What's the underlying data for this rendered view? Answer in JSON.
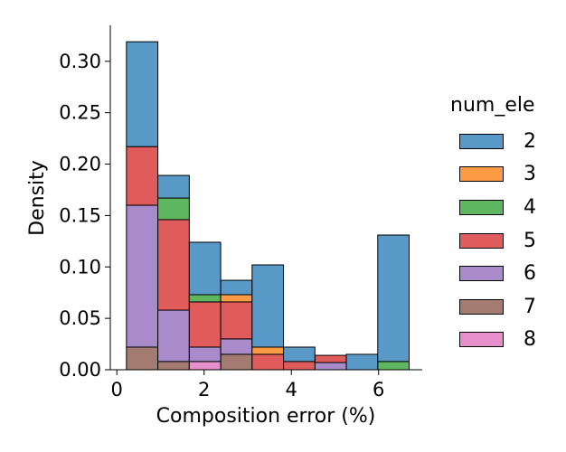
{
  "chart_data": {
    "type": "bar",
    "stacked": true,
    "xlabel": "Composition error (%)",
    "ylabel": "Density",
    "xlim": [
      -0.15,
      7.0
    ],
    "ylim": [
      0,
      0.335
    ],
    "xticks": [
      "0",
      "2",
      "4",
      "6"
    ],
    "xtick_values": [
      0,
      2,
      4,
      6
    ],
    "yticks": [
      "0.00",
      "0.05",
      "0.10",
      "0.15",
      "0.20",
      "0.25",
      "0.30"
    ],
    "ytick_values": [
      0,
      0.05,
      0.1,
      0.15,
      0.2,
      0.25,
      0.3
    ],
    "bin_edges": [
      0.22,
      0.94,
      1.66,
      2.38,
      3.1,
      3.82,
      4.54,
      5.26,
      5.98,
      6.7
    ],
    "legend_title": "num_ele",
    "legend_position": "right",
    "series": [
      {
        "name": "7",
        "color": "#a47b71",
        "values": [
          0.022,
          0.008,
          0.0,
          0.015,
          0.0,
          0.0,
          0.0,
          0.0,
          0.0
        ]
      },
      {
        "name": "8",
        "color": "#e58fcb",
        "values": [
          0.0,
          0.0,
          0.008,
          0.0,
          0.0,
          0.0,
          0.0,
          0.0,
          0.0
        ]
      },
      {
        "name": "6",
        "color": "#a98bcc",
        "values": [
          0.138,
          0.05,
          0.014,
          0.015,
          0.0,
          0.0,
          0.007,
          0.0,
          0.0
        ]
      },
      {
        "name": "5",
        "color": "#e05b5c",
        "values": [
          0.057,
          0.088,
          0.044,
          0.036,
          0.015,
          0.008,
          0.007,
          0.0,
          0.0
        ]
      },
      {
        "name": "4",
        "color": "#5eb760",
        "values": [
          0.0,
          0.021,
          0.007,
          0.0,
          0.0,
          0.0,
          0.0,
          0.0,
          0.008
        ]
      },
      {
        "name": "3",
        "color": "#fd9a44",
        "values": [
          0.0,
          0.0,
          0.0,
          0.007,
          0.007,
          0.0,
          0.0,
          0.0,
          0.0
        ]
      },
      {
        "name": "2",
        "color": "#5899c7",
        "values": [
          0.102,
          0.022,
          0.051,
          0.014,
          0.08,
          0.014,
          0.0,
          0.015,
          0.123
        ]
      }
    ],
    "legend_order": [
      "2",
      "3",
      "4",
      "5",
      "6",
      "7",
      "8"
    ]
  }
}
